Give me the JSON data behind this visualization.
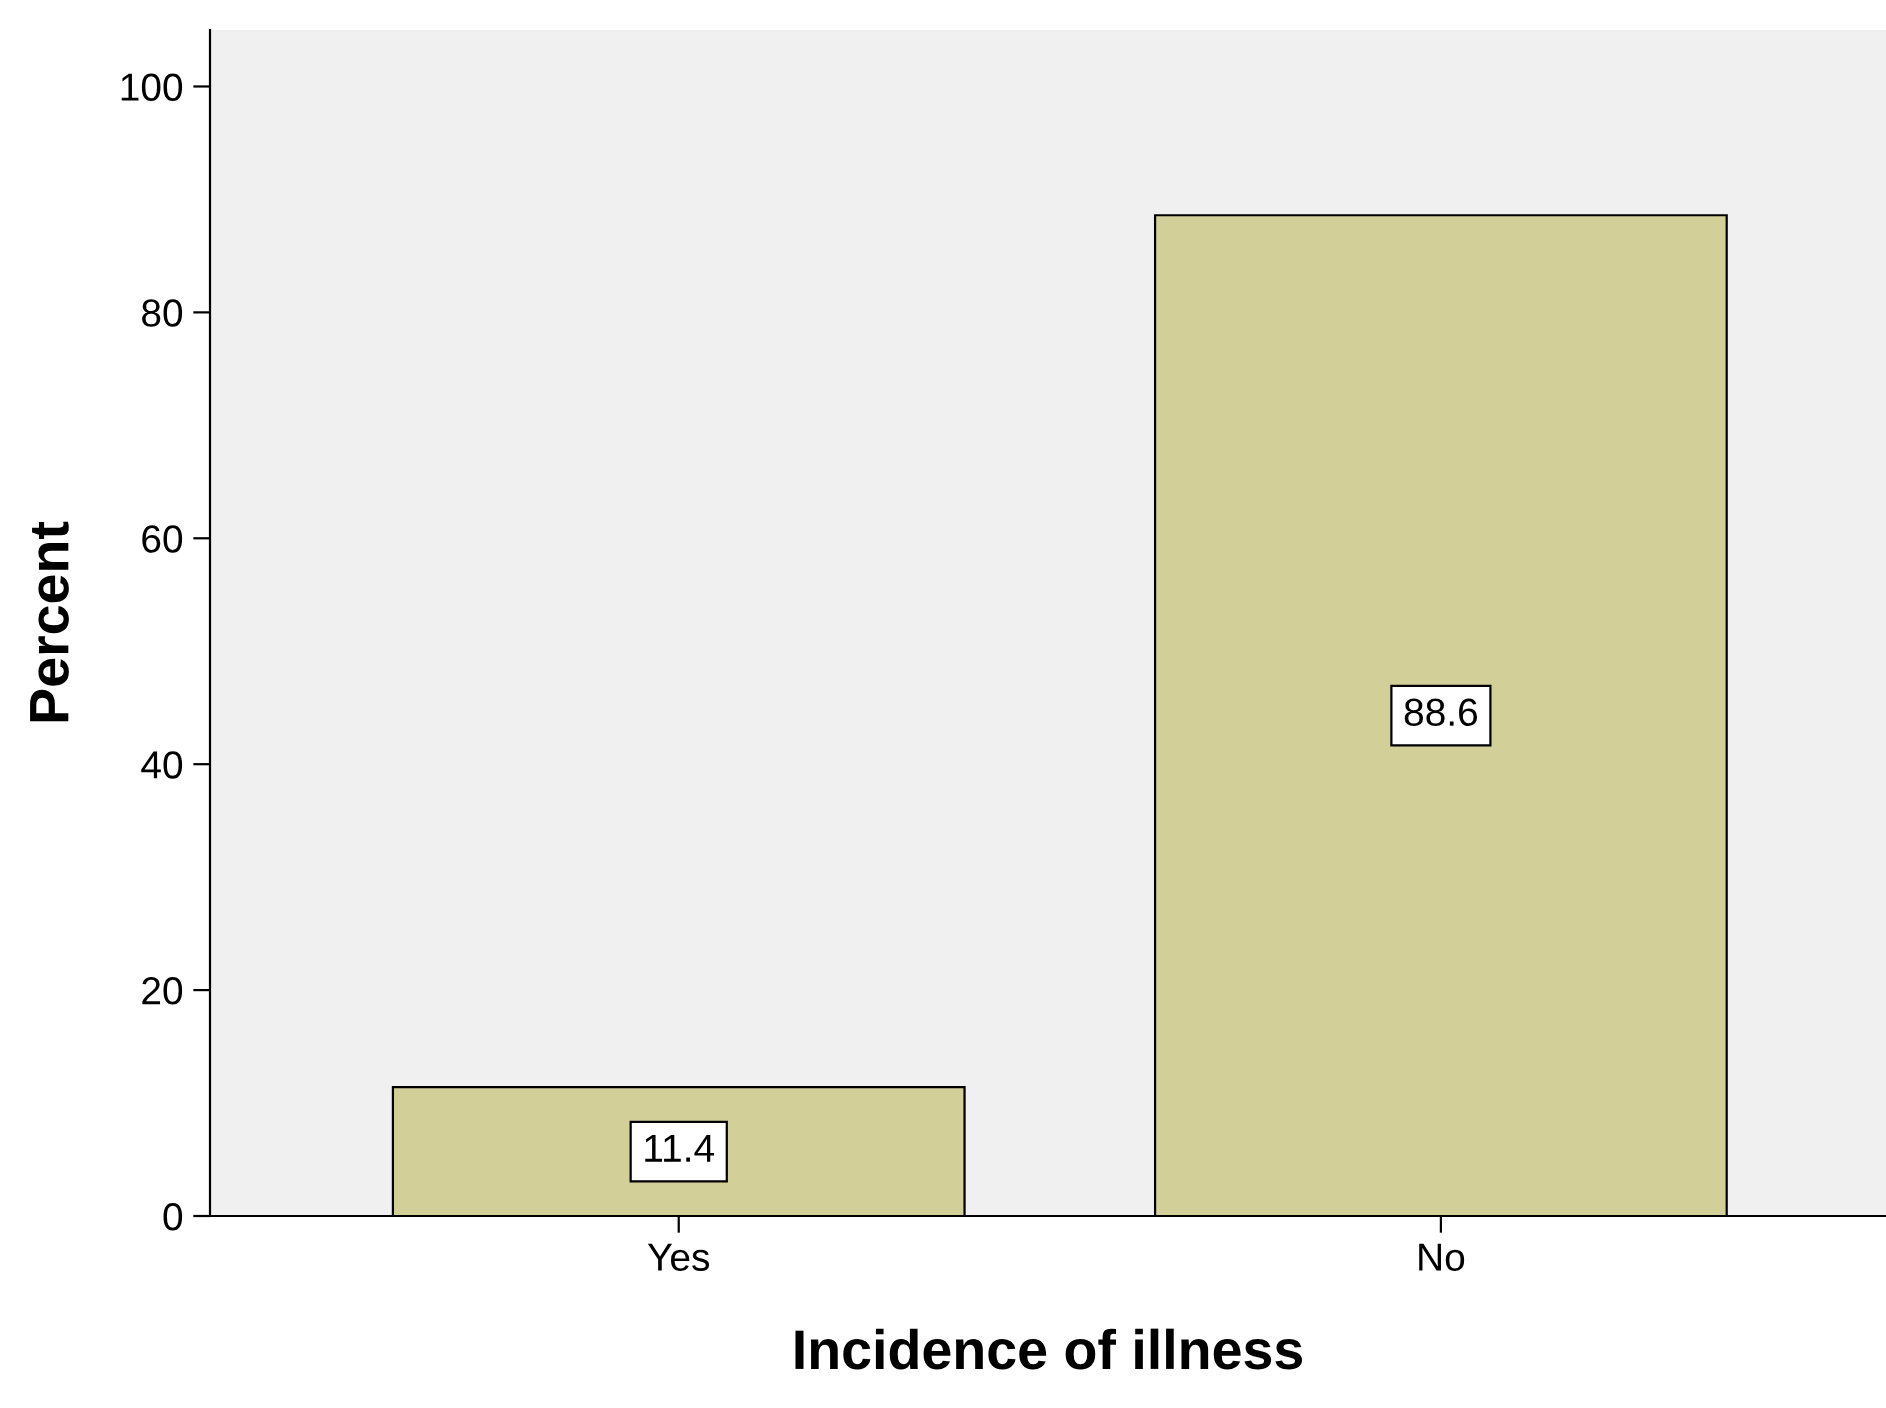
{
  "chart_data": {
    "type": "bar",
    "xlabel": "Incidence of illness",
    "ylabel": "Percent",
    "categories": [
      "Yes",
      "No"
    ],
    "values": [
      11.4,
      88.6
    ],
    "color": "#d3cf98",
    "ylim": [
      0,
      105
    ],
    "yticks": [
      0,
      20,
      40,
      60,
      80,
      100
    ],
    "data_labels": true,
    "grid": false,
    "legend": false
  }
}
